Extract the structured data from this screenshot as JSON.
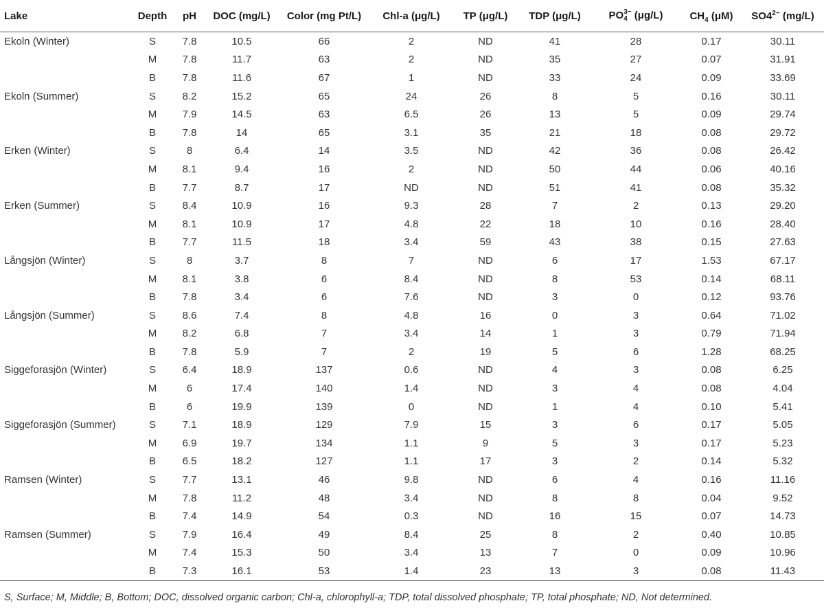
{
  "columns": {
    "lake": "Lake",
    "depth": "Depth",
    "ph": "pH",
    "doc": "DOC (mg/L)",
    "color": "Color (mg Pt/L)",
    "chla": "Chl-a (μg/L)",
    "tp": "TP (μg/L)",
    "tdp": "TDP (μg/L)",
    "po4_base": "PO",
    "po4_sup": "3−",
    "po4_sub": "4",
    "po4_unit": " (μg/L)",
    "ch4_base": "CH",
    "ch4_sub": "4",
    "ch4_unit": " (μM)",
    "so4_base": "SO4",
    "so4_sup": "2−",
    "so4_unit": " (mg/L)"
  },
  "rows": [
    {
      "lake": "Ekoln (Winter)",
      "depth": "S",
      "ph": "7.8",
      "doc": "10.5",
      "color": "66",
      "chla": "2",
      "tp": "ND",
      "tdp": "41",
      "po4": "28",
      "ch4": "0.17",
      "so4": "30.11"
    },
    {
      "lake": "",
      "depth": "M",
      "ph": "7.8",
      "doc": "11.7",
      "color": "63",
      "chla": "2",
      "tp": "ND",
      "tdp": "35",
      "po4": "27",
      "ch4": "0.07",
      "so4": "31.91"
    },
    {
      "lake": "",
      "depth": "B",
      "ph": "7.8",
      "doc": "11.6",
      "color": "67",
      "chla": "1",
      "tp": "ND",
      "tdp": "33",
      "po4": "24",
      "ch4": "0.09",
      "so4": "33.69"
    },
    {
      "lake": "Ekoln (Summer)",
      "depth": "S",
      "ph": "8.2",
      "doc": "15.2",
      "color": "65",
      "chla": "24",
      "tp": "26",
      "tdp": "8",
      "po4": "5",
      "ch4": "0.16",
      "so4": "30.11"
    },
    {
      "lake": "",
      "depth": "M",
      "ph": "7.9",
      "doc": "14.5",
      "color": "63",
      "chla": "6.5",
      "tp": "26",
      "tdp": "13",
      "po4": "5",
      "ch4": "0.09",
      "so4": "29.74"
    },
    {
      "lake": "",
      "depth": "B",
      "ph": "7.8",
      "doc": "14",
      "color": "65",
      "chla": "3.1",
      "tp": "35",
      "tdp": "21",
      "po4": "18",
      "ch4": "0.08",
      "so4": "29.72"
    },
    {
      "lake": "Erken (Winter)",
      "depth": "S",
      "ph": "8",
      "doc": "6.4",
      "color": "14",
      "chla": "3.5",
      "tp": "ND",
      "tdp": "42",
      "po4": "36",
      "ch4": "0.08",
      "so4": "26.42"
    },
    {
      "lake": "",
      "depth": "M",
      "ph": "8.1",
      "doc": "9.4",
      "color": "16",
      "chla": "2",
      "tp": "ND",
      "tdp": "50",
      "po4": "44",
      "ch4": "0.06",
      "so4": "40.16"
    },
    {
      "lake": "",
      "depth": "B",
      "ph": "7.7",
      "doc": "8.7",
      "color": "17",
      "chla": "ND",
      "tp": "ND",
      "tdp": "51",
      "po4": "41",
      "ch4": "0.08",
      "so4": "35.32"
    },
    {
      "lake": "Erken (Summer)",
      "depth": "S",
      "ph": "8.4",
      "doc": "10.9",
      "color": "16",
      "chla": "9.3",
      "tp": "28",
      "tdp": "7",
      "po4": "2",
      "ch4": "0.13",
      "so4": "29.20"
    },
    {
      "lake": "",
      "depth": "M",
      "ph": "8.1",
      "doc": "10.9",
      "color": "17",
      "chla": "4.8",
      "tp": "22",
      "tdp": "18",
      "po4": "10",
      "ch4": "0.16",
      "so4": "28.40"
    },
    {
      "lake": "",
      "depth": "B",
      "ph": "7.7",
      "doc": "11.5",
      "color": "18",
      "chla": "3.4",
      "tp": "59",
      "tdp": "43",
      "po4": "38",
      "ch4": "0.15",
      "so4": "27.63"
    },
    {
      "lake": "Långsjön (Winter)",
      "depth": "S",
      "ph": "8",
      "doc": "3.7",
      "color": "8",
      "chla": "7",
      "tp": "ND",
      "tdp": "6",
      "po4": "17",
      "ch4": "1.53",
      "so4": "67.17"
    },
    {
      "lake": "",
      "depth": "M",
      "ph": "8.1",
      "doc": "3.8",
      "color": "6",
      "chla": "8.4",
      "tp": "ND",
      "tdp": "8",
      "po4": "53",
      "ch4": "0.14",
      "so4": "68.11"
    },
    {
      "lake": "",
      "depth": "B",
      "ph": "7.8",
      "doc": "3.4",
      "color": "6",
      "chla": "7.6",
      "tp": "ND",
      "tdp": "3",
      "po4": "0",
      "ch4": "0.12",
      "so4": "93.76"
    },
    {
      "lake": "Långsjön (Summer)",
      "depth": "S",
      "ph": "8.6",
      "doc": "7.4",
      "color": "8",
      "chla": "4.8",
      "tp": "16",
      "tdp": "0",
      "po4": "3",
      "ch4": "0.64",
      "so4": "71.02"
    },
    {
      "lake": "",
      "depth": "M",
      "ph": "8.2",
      "doc": "6.8",
      "color": "7",
      "chla": "3.4",
      "tp": "14",
      "tdp": "1",
      "po4": "3",
      "ch4": "0.79",
      "so4": "71.94"
    },
    {
      "lake": "",
      "depth": "B",
      "ph": "7.8",
      "doc": "5.9",
      "color": "7",
      "chla": "2",
      "tp": "19",
      "tdp": "5",
      "po4": "6",
      "ch4": "1.28",
      "so4": "68.25"
    },
    {
      "lake": "Siggeforasjön (Winter)",
      "depth": "S",
      "ph": "6.4",
      "doc": "18.9",
      "color": "137",
      "chla": "0.6",
      "tp": "ND",
      "tdp": "4",
      "po4": "3",
      "ch4": "0.08",
      "so4": "6.25"
    },
    {
      "lake": "",
      "depth": "M",
      "ph": "6",
      "doc": "17.4",
      "color": "140",
      "chla": "1.4",
      "tp": "ND",
      "tdp": "3",
      "po4": "4",
      "ch4": "0.08",
      "so4": "4.04"
    },
    {
      "lake": "",
      "depth": "B",
      "ph": "6",
      "doc": "19.9",
      "color": "139",
      "chla": "0",
      "tp": "ND",
      "tdp": "1",
      "po4": "4",
      "ch4": "0.10",
      "so4": "5.41"
    },
    {
      "lake": "Siggeforasjön (Summer)",
      "depth": "S",
      "ph": "7.1",
      "doc": "18.9",
      "color": "129",
      "chla": "7.9",
      "tp": "15",
      "tdp": "3",
      "po4": "6",
      "ch4": "0.17",
      "so4": "5.05"
    },
    {
      "lake": "",
      "depth": "M",
      "ph": "6.9",
      "doc": "19.7",
      "color": "134",
      "chla": "1.1",
      "tp": "9",
      "tdp": "5",
      "po4": "3",
      "ch4": "0.17",
      "so4": "5.23"
    },
    {
      "lake": "",
      "depth": "B",
      "ph": "6.5",
      "doc": "18.2",
      "color": "127",
      "chla": "1.1",
      "tp": "17",
      "tdp": "3",
      "po4": "2",
      "ch4": "0.14",
      "so4": "5.32"
    },
    {
      "lake": "Ramsen (Winter)",
      "depth": "S",
      "ph": "7.7",
      "doc": "13.1",
      "color": "46",
      "chla": "9.8",
      "tp": "ND",
      "tdp": "6",
      "po4": "4",
      "ch4": "0.16",
      "so4": "11.16"
    },
    {
      "lake": "",
      "depth": "M",
      "ph": "7.8",
      "doc": "11.2",
      "color": "48",
      "chla": "3.4",
      "tp": "ND",
      "tdp": "8",
      "po4": "8",
      "ch4": "0.04",
      "so4": "9.52"
    },
    {
      "lake": "",
      "depth": "B",
      "ph": "7.4",
      "doc": "14.9",
      "color": "54",
      "chla": "0.3",
      "tp": "ND",
      "tdp": "16",
      "po4": "15",
      "ch4": "0.07",
      "so4": "14.73"
    },
    {
      "lake": "Ramsen (Summer)",
      "depth": "S",
      "ph": "7.9",
      "doc": "16.4",
      "color": "49",
      "chla": "8.4",
      "tp": "25",
      "tdp": "8",
      "po4": "2",
      "ch4": "0.40",
      "so4": "10.85"
    },
    {
      "lake": "",
      "depth": "M",
      "ph": "7.4",
      "doc": "15.3",
      "color": "50",
      "chla": "3.4",
      "tp": "13",
      "tdp": "7",
      "po4": "0",
      "ch4": "0.09",
      "so4": "10.96"
    },
    {
      "lake": "",
      "depth": "B",
      "ph": "7.3",
      "doc": "16.1",
      "color": "53",
      "chla": "1.4",
      "tp": "23",
      "tdp": "13",
      "po4": "3",
      "ch4": "0.08",
      "so4": "11.43"
    }
  ],
  "footnote": "S, Surface; M, Middle; B, Bottom; DOC, dissolved organic carbon; Chl-a, chlorophyll-a; TDP, total dissolved phosphate; TP, total phosphate; ND, Not determined."
}
